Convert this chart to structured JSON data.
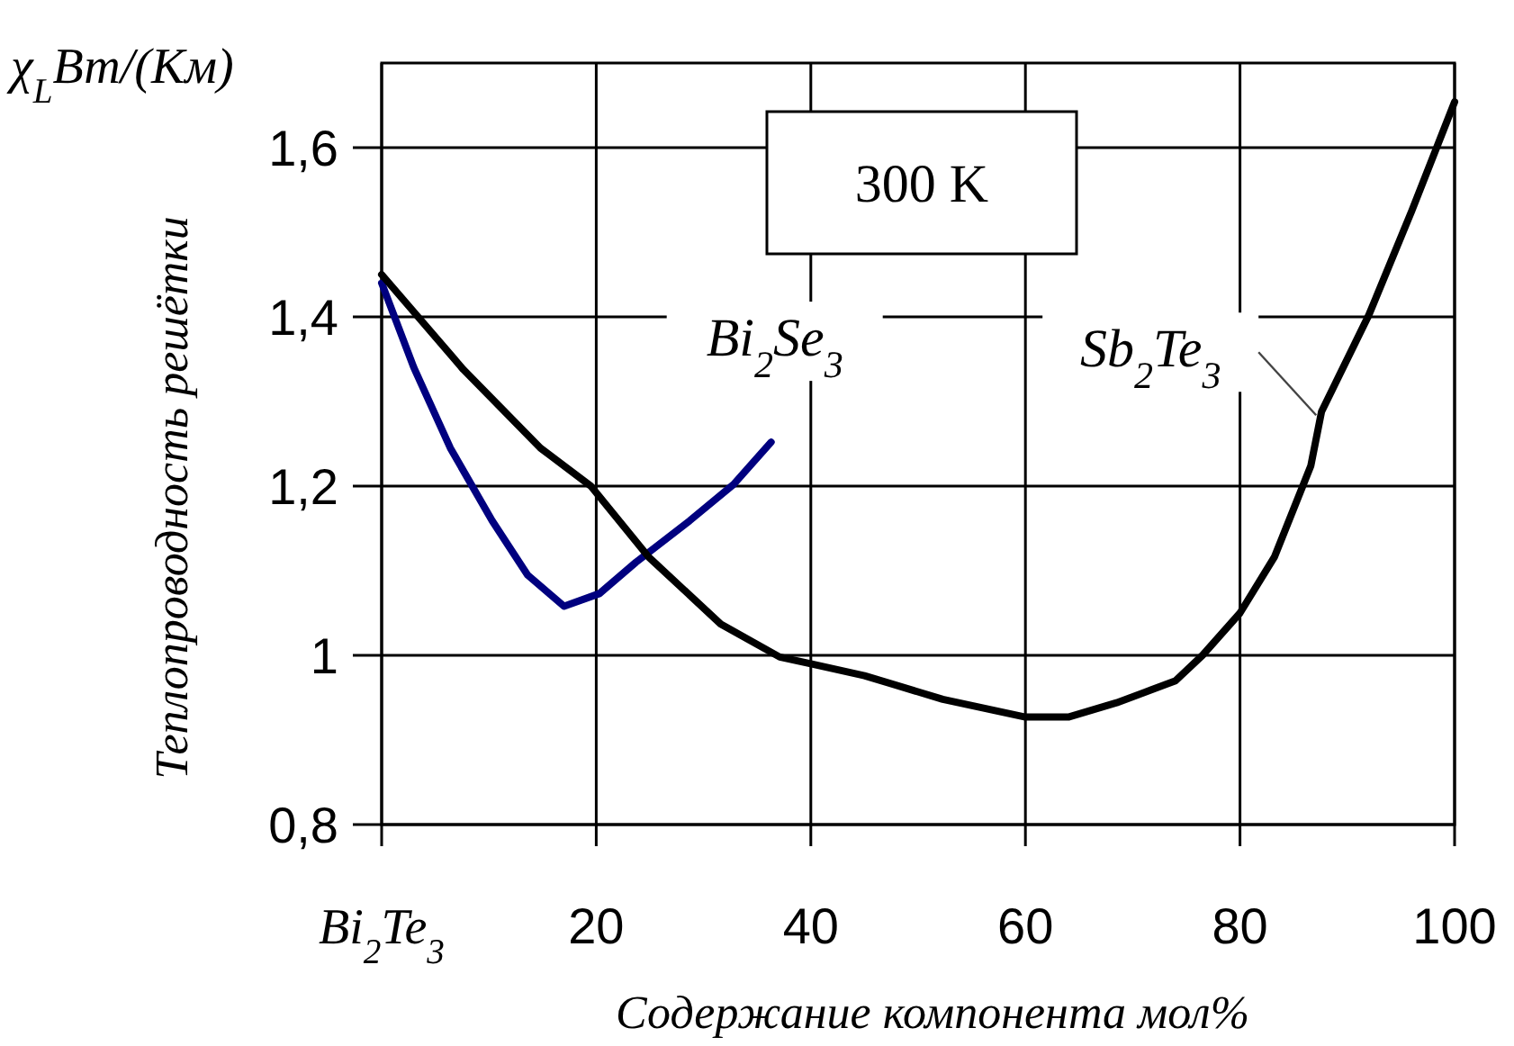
{
  "chart_data": {
    "type": "line",
    "title": "χ$_{L}$Вт/(Км)",
    "ylabel": "Теплопроводность решётки",
    "xlabel": "Содержание компонента мол%",
    "annotations": [
      "300 K"
    ],
    "xlim": [
      0,
      100
    ],
    "xticks": [
      {
        "value": 0,
        "label": "Bi$_{2}$Te$_{3}$"
      },
      20,
      40,
      60,
      80,
      100
    ],
    "ylim": [
      0.8,
      1.7
    ],
    "yticks": [
      {
        "value": 0.8,
        "label": "0,8"
      },
      1,
      {
        "value": 1.2,
        "label": "1,2"
      },
      {
        "value": 1.4,
        "label": "1,4"
      },
      {
        "value": 1.6,
        "label": "1,6"
      }
    ],
    "grid": true,
    "marker": "none",
    "line_style": "solid",
    "series": [
      {
        "name": "Bi$_{2}$Se$_{3}$",
        "color": "#00007f",
        "x": [
          0,
          3,
          6.4,
          10.3,
          13.6,
          17,
          20.3,
          23.7,
          28.7,
          32.8,
          36.3
        ],
        "values": [
          1.44,
          1.34,
          1.245,
          1.159,
          1.095,
          1.058,
          1.073,
          1.11,
          1.159,
          1.202,
          1.252
        ]
      },
      {
        "name": "Sb$_{2}$Te$_{3}$",
        "color": "#000000",
        "x": [
          0,
          7.6,
          14.8,
          19.5,
          24.9,
          31.6,
          37.1,
          40,
          45,
          52.3,
          60,
          64,
          68.5,
          74,
          76.5,
          80,
          83.2,
          86.6,
          87.6,
          92,
          96,
          100
        ],
        "values": [
          1.45,
          1.338,
          1.245,
          1.2,
          1.116,
          1.037,
          0.998,
          0.99,
          0.976,
          0.948,
          0.927,
          0.927,
          0.944,
          0.97,
          1.0,
          1.05,
          1.116,
          1.224,
          1.288,
          1.402,
          1.525,
          1.654
        ]
      }
    ]
  }
}
